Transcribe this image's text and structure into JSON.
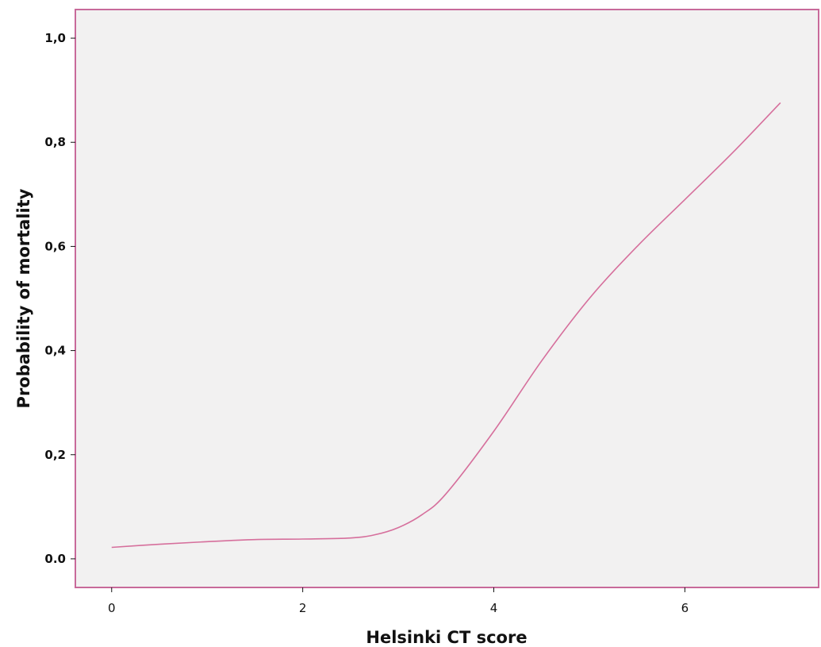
{
  "chart_data": {
    "type": "line",
    "title": "",
    "xlabel": "Helsinki CT score",
    "ylabel": "Probability of mortality",
    "xlim": [
      -0.38,
      7.4
    ],
    "ylim": [
      -0.055,
      1.055
    ],
    "x_ticks": [
      0,
      2,
      4,
      6
    ],
    "x_tick_labels": [
      "0",
      "2",
      "4",
      "6"
    ],
    "y_ticks": [
      0.0,
      0.2,
      0.4,
      0.6,
      0.8,
      1.0
    ],
    "y_tick_labels": [
      "0.0",
      "0,2",
      "0,4",
      "0,6",
      "0,8",
      "1,0"
    ],
    "grid": false,
    "legend": "none",
    "colors": {
      "plot_background": "#f2f1f1",
      "frame": "#c86a9a",
      "line": "#d66f9c",
      "text": "#111111"
    },
    "series": [
      {
        "x": [
          0.0,
          0.5,
          1.0,
          1.5,
          2.0,
          2.5,
          2.75,
          3.0,
          3.25,
          3.5,
          4.0,
          4.5,
          5.0,
          5.5,
          6.0,
          6.5,
          7.0
        ],
        "y": [
          0.022,
          0.028,
          0.033,
          0.037,
          0.038,
          0.04,
          0.046,
          0.06,
          0.085,
          0.125,
          0.245,
          0.38,
          0.5,
          0.6,
          0.69,
          0.78,
          0.876
        ]
      }
    ]
  }
}
